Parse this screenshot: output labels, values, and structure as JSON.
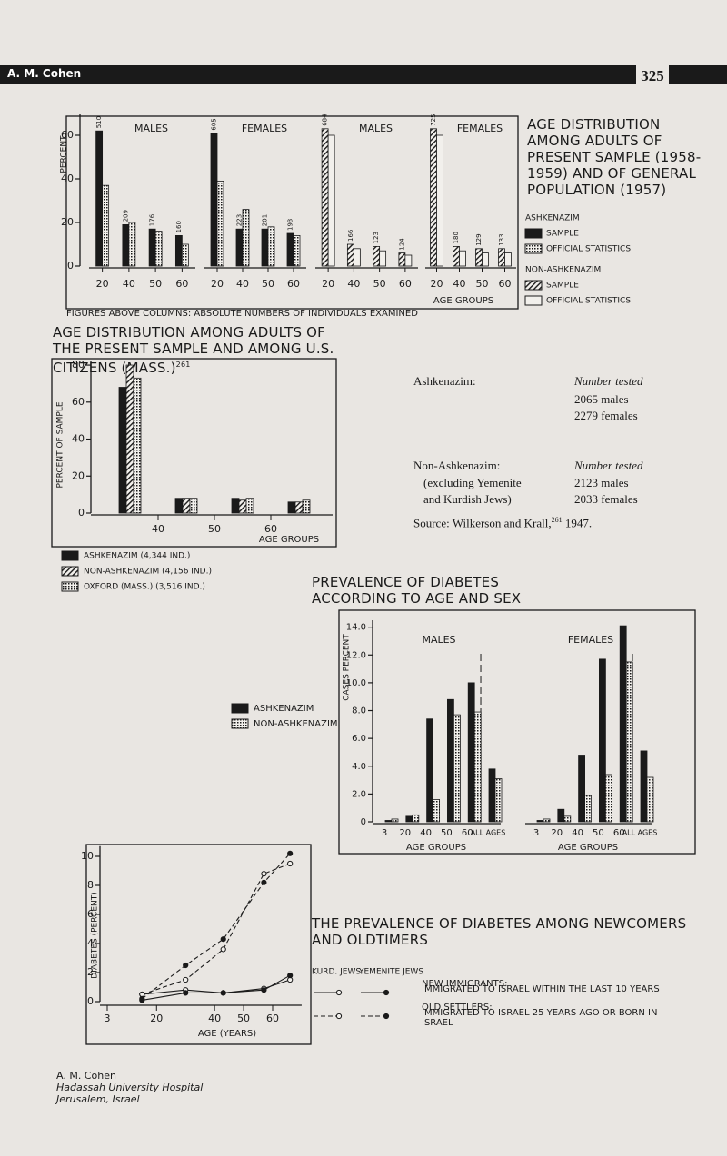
{
  "header": {
    "author": "A. M. Cohen",
    "page": "325"
  },
  "footer": {
    "author": "A. M. Cohen",
    "affiliation": "Hadassah University Hospital",
    "city": "Jerusalem, Israel"
  },
  "chart_data": [
    {
      "type": "panels",
      "title": "AGE DISTRIBUTION AMONG ADULTS OF PRESENT SAMPLE (1958-1959) AND OF GENERAL POPULATION (1957)",
      "note": "FIGURES ABOVE COLUMNS: ABSOLUTE NUMBERS OF INDIVIDUALS EXAMINED",
      "y_label": "PERCENT",
      "x_label": "AGE GROUPS",
      "categories": [
        "20",
        "40",
        "50",
        "60"
      ],
      "ylim": [
        0,
        70
      ],
      "yticks": [
        0,
        20,
        40,
        60
      ],
      "groups": [
        {
          "name": "ASHKENAZIM",
          "legend": [
            {
              "name": "SAMPLE",
              "fill": "solid"
            },
            {
              "name": "OFFICIAL STATISTICS",
              "fill": "dots"
            }
          ],
          "panels": [
            {
              "title": "MALES",
              "series": [
                {
                  "values": [
                    62,
                    19,
                    17,
                    14
                  ],
                  "counts": [
                    510,
                    209,
                    176,
                    160
                  ]
                },
                {
                  "values": [
                    37,
                    20,
                    16,
                    10
                  ]
                }
              ]
            },
            {
              "title": "FEMALES",
              "series": [
                {
                  "values": [
                    61,
                    17,
                    17,
                    15
                  ],
                  "counts": [
                    605,
                    223,
                    201,
                    193
                  ]
                },
                {
                  "values": [
                    39,
                    26,
                    18,
                    14
                  ]
                }
              ]
            }
          ]
        },
        {
          "name": "NON-ASHKENAZIM",
          "legend": [
            {
              "name": "SAMPLE",
              "fill": "hatch"
            },
            {
              "name": "OFFICIAL STATISTICS",
              "fill": "empty"
            }
          ],
          "panels": [
            {
              "title": "MALES",
              "series": [
                {
                  "values": [
                    63,
                    10,
                    9,
                    6
                  ],
                  "counts": [
                    684,
                    166,
                    123,
                    124
                  ]
                },
                {
                  "values": [
                    60,
                    8,
                    7,
                    5
                  ]
                }
              ]
            },
            {
              "title": "FEMALES",
              "series": [
                {
                  "values": [
                    63,
                    9,
                    8,
                    8
                  ],
                  "counts": [
                    725,
                    180,
                    129,
                    133
                  ]
                },
                {
                  "values": [
                    60,
                    7,
                    6,
                    6
                  ]
                }
              ]
            }
          ]
        }
      ]
    },
    {
      "type": "bar",
      "title": "AGE DISTRIBUTION AMONG ADULTS OF THE PRESENT SAMPLE AND AMONG U.S. CITIZENS (MASS.)",
      "title_ref": "261",
      "y_label": "PERCENT OF SAMPLE",
      "x_label": "AGE GROUPS",
      "xticks": [
        "40",
        "50",
        "60"
      ],
      "ylim": [
        0,
        82
      ],
      "yticks": [
        0,
        20,
        40,
        60,
        80
      ],
      "series": [
        {
          "name": "ASHKENAZIM (4,344 IND.)",
          "fill": "solid",
          "values": [
            68,
            8,
            8,
            6
          ]
        },
        {
          "name": "NON-ASHKENAZIM (4,156 IND.)",
          "fill": "hatch",
          "values": [
            80,
            8,
            7,
            6
          ]
        },
        {
          "name": "OXFORD (MASS.) (3,516 IND.)",
          "fill": "dots",
          "values": [
            73,
            8,
            8,
            7
          ]
        }
      ],
      "samples": [
        {
          "label": "Ashkenazim:",
          "heading": "Number tested",
          "counts": [
            "2065 males",
            "2279 females"
          ]
        },
        {
          "label": "Non-Ashkenazim:",
          "detail": [
            "(excluding Yemenite",
            "and Kurdish Jews)"
          ],
          "heading": "Number tested",
          "counts": [
            "2123 males",
            "2033 females"
          ]
        }
      ],
      "source": "Source: Wilkerson and Krall,",
      "source_ref": "261",
      "source_year": "1947."
    },
    {
      "type": "panels-bar",
      "title": "PREVALENCE OF DIABETES ACCORDING TO AGE AND SEX",
      "y_label": "CASES PERCENT",
      "ylim": [
        0,
        14.5
      ],
      "yticks": [
        0,
        {
          "value": 2,
          "label": "2.0"
        },
        {
          "value": 4,
          "label": "4.0"
        },
        {
          "value": 6,
          "label": "6.0"
        },
        {
          "value": 8,
          "label": "8.0"
        },
        {
          "value": 10,
          "label": "10.0"
        },
        {
          "value": 12,
          "label": "12.0"
        },
        {
          "value": 14,
          "label": "14.0"
        }
      ],
      "categories": [
        "3",
        "20",
        "40",
        "50",
        "60",
        "ALL AGES"
      ],
      "legend": [
        {
          "name": "ASHKENAZIM",
          "fill": "solid"
        },
        {
          "name": "NON-ASHKENAZIM",
          "fill": "dots"
        }
      ],
      "panels": [
        {
          "title": "MALES",
          "x_label": "AGE GROUPS",
          "series": [
            {
              "values": [
                0.1,
                0.4,
                7.4,
                8.8,
                10.0,
                3.8
              ]
            },
            {
              "values": [
                0.2,
                0.5,
                1.6,
                7.7,
                7.9,
                3.1
              ]
            }
          ]
        },
        {
          "title": "FEMALES",
          "x_label": "AGE GROUPS",
          "series": [
            {
              "values": [
                0.1,
                0.9,
                4.8,
                11.7,
                14.1,
                5.1
              ]
            },
            {
              "values": [
                0.2,
                0.4,
                1.9,
                3.4,
                11.5,
                3.2
              ]
            }
          ]
        }
      ]
    },
    {
      "type": "line",
      "title": "THE PREVALENCE OF DIABETES AMONG NEWCOMERS AND OLDTIMERS",
      "y_label": "DIABETES (PERCENT)",
      "x_label": "AGE (YEARS)",
      "x": [
        15,
        30,
        43,
        57,
        66
      ],
      "xlim": [
        -3,
        70
      ],
      "xticks": [
        3,
        20,
        40,
        50,
        60
      ],
      "ylim": [
        0,
        10.7
      ],
      "yticks": [
        0,
        2,
        4,
        6,
        8,
        10
      ],
      "legend_columns": [
        "KURD. JEWS",
        "YEMENITE JEWS"
      ],
      "groups": [
        {
          "name": "NEW IMMIGRANTS:",
          "note": "IMMIGRATED TO ISRAEL WITHIN THE LAST 10 YEARS",
          "dashed": false,
          "series": [
            {
              "marker": "open",
              "values": [
                0.5,
                0.8,
                0.6,
                0.9,
                1.5
              ]
            },
            {
              "marker": "filled",
              "values": [
                0.1,
                0.6,
                0.6,
                0.8,
                1.8
              ]
            }
          ]
        },
        {
          "name": "OLD SETTLERS:",
          "note": "IMMIGRATED TO ISRAEL 25 YEARS AGO OR BORN IN ISRAEL",
          "dashed": true,
          "series": [
            {
              "marker": "open",
              "values": [
                0.5,
                1.5,
                3.6,
                8.8,
                9.5
              ]
            },
            {
              "marker": "filled",
              "values": [
                0.2,
                2.5,
                4.3,
                8.2,
                10.2
              ]
            }
          ]
        }
      ]
    }
  ]
}
